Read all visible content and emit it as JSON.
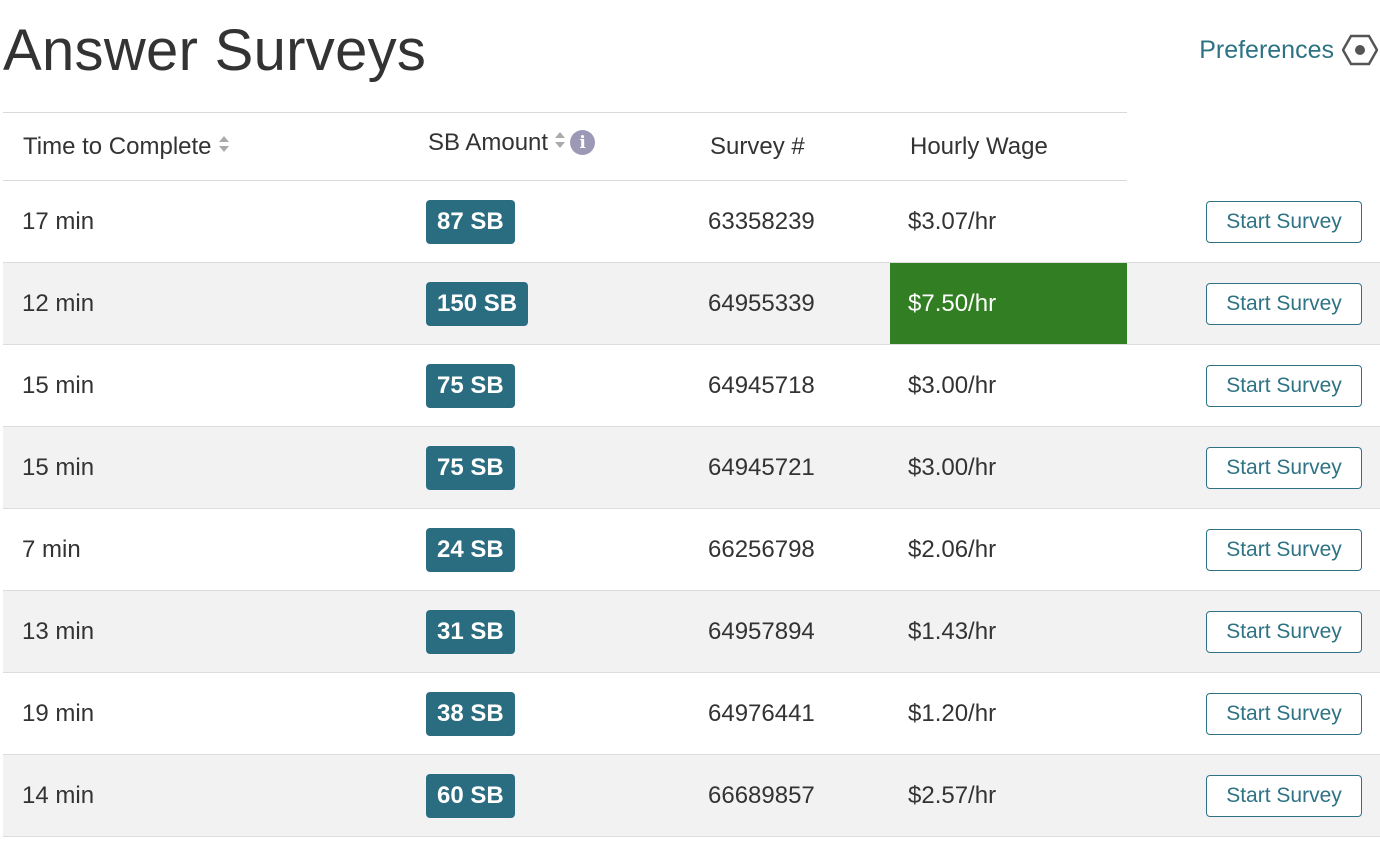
{
  "page": {
    "title": "Answer Surveys"
  },
  "preferences": {
    "label": "Preferences",
    "icon": "hexagon-gear-icon",
    "color": "#2e7384"
  },
  "columns": {
    "time": "Time to Complete",
    "sb_amount": "SB Amount",
    "survey_num": "Survey #",
    "hourly_wage": "Hourly Wage"
  },
  "colors": {
    "badge": "#2b6d80",
    "highlight_wage": "#317f22",
    "button_border": "#2e7384"
  },
  "rows": [
    {
      "time": "17 min",
      "sb": "87 SB",
      "survey": "63358239",
      "wage": "$3.07/hr",
      "highlight": false,
      "button": "Start Survey"
    },
    {
      "time": "12 min",
      "sb": "150 SB",
      "survey": "64955339",
      "wage": "$7.50/hr",
      "highlight": true,
      "button": "Start Survey"
    },
    {
      "time": "15 min",
      "sb": "75 SB",
      "survey": "64945718",
      "wage": "$3.00/hr",
      "highlight": false,
      "button": "Start Survey"
    },
    {
      "time": "15 min",
      "sb": "75 SB",
      "survey": "64945721",
      "wage": "$3.00/hr",
      "highlight": false,
      "button": "Start Survey"
    },
    {
      "time": "7 min",
      "sb": "24 SB",
      "survey": "66256798",
      "wage": "$2.06/hr",
      "highlight": false,
      "button": "Start Survey"
    },
    {
      "time": "13 min",
      "sb": "31 SB",
      "survey": "64957894",
      "wage": "$1.43/hr",
      "highlight": false,
      "button": "Start Survey"
    },
    {
      "time": "19 min",
      "sb": "38 SB",
      "survey": "64976441",
      "wage": "$1.20/hr",
      "highlight": false,
      "button": "Start Survey"
    },
    {
      "time": "14 min",
      "sb": "60 SB",
      "survey": "66689857",
      "wage": "$2.57/hr",
      "highlight": false,
      "button": "Start Survey"
    }
  ]
}
